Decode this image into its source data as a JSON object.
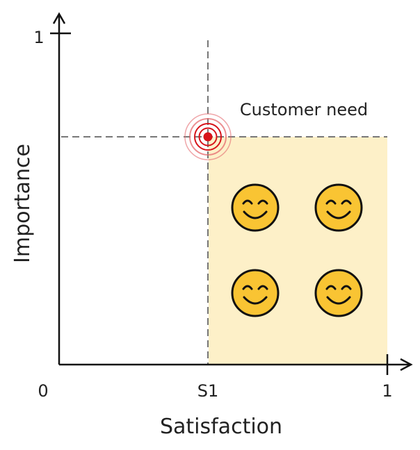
{
  "axes": {
    "x_label": "Satisfaction",
    "y_label": "Importance",
    "origin_label": "0",
    "x_max_label": "1",
    "y_max_label": "1",
    "x_marker_label": "S1"
  },
  "point": {
    "label": "Customer need"
  },
  "colors": {
    "region_fill": "#fdf0c8",
    "target_red": "#d7141a",
    "ring_red": "#e56b6f",
    "axis": "#111111",
    "dash": "#777777",
    "smiley_face": "#f9c433",
    "smiley_outline": "#111111"
  },
  "icons": [
    "smiley-icon",
    "smiley-icon",
    "smiley-icon",
    "smiley-icon",
    "target-icon"
  ]
}
